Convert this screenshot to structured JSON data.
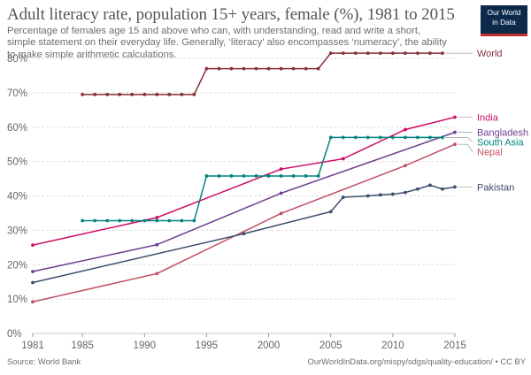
{
  "header": {
    "title": "Adult literacy rate, population 15+ years, female (%), 1981 to 2015",
    "subtitle": "Percentage of females age 15 and above who can, with understanding, read and write a short, simple statement on their everyday life. Generally, ‘literacy’ also encompasses ‘numeracy’, the ability to make simple arithmetic calculations."
  },
  "logo": {
    "line1": "Our World",
    "line2": "in Data"
  },
  "footer": {
    "source": "Source: World Bank",
    "url": "OurWorldInData.org/mispy/sdgs/quality-education/ • CC BY"
  },
  "chart_data": {
    "type": "line",
    "title": "Adult literacy rate, population 15+ years, female (%), 1981 to 2015",
    "xlabel": "",
    "ylabel": "",
    "xlim": [
      1981,
      2015
    ],
    "ylim": [
      0,
      80
    ],
    "x_ticks": [
      1981,
      1985,
      1990,
      1995,
      2000,
      2005,
      2010,
      2015
    ],
    "y_ticks": [
      0,
      10,
      20,
      30,
      40,
      50,
      60,
      70,
      80
    ],
    "y_tick_labels": [
      "0%",
      "10%",
      "20%",
      "30%",
      "40%",
      "50%",
      "60%",
      "70%",
      "80%"
    ],
    "grid": true,
    "legend": "inline-right",
    "series": [
      {
        "name": "World",
        "color": "#883039",
        "points": [
          [
            1985,
            69.5
          ],
          [
            1986,
            69.5
          ],
          [
            1987,
            69.5
          ],
          [
            1988,
            69.5
          ],
          [
            1989,
            69.5
          ],
          [
            1990,
            69.5
          ],
          [
            1991,
            69.5
          ],
          [
            1992,
            69.5
          ],
          [
            1993,
            69.5
          ],
          [
            1994,
            69.5
          ],
          [
            1995,
            77
          ],
          [
            1996,
            77
          ],
          [
            1997,
            77
          ],
          [
            1998,
            77
          ],
          [
            1999,
            77
          ],
          [
            2000,
            77
          ],
          [
            2001,
            77
          ],
          [
            2002,
            77
          ],
          [
            2003,
            77
          ],
          [
            2004,
            77
          ],
          [
            2005,
            81.5
          ],
          [
            2006,
            81.5
          ],
          [
            2007,
            81.5
          ],
          [
            2008,
            81.5
          ],
          [
            2009,
            81.5
          ],
          [
            2010,
            81.5
          ],
          [
            2011,
            81.5
          ],
          [
            2012,
            81.5
          ],
          [
            2013,
            81.5
          ],
          [
            2014,
            81.5
          ]
        ]
      },
      {
        "name": "India",
        "color": "#cf0a66",
        "points": [
          [
            1981,
            25.7
          ],
          [
            1991,
            33.7
          ],
          [
            2001,
            47.8
          ],
          [
            2006,
            50.8
          ],
          [
            2011,
            59.3
          ],
          [
            2015,
            62.9
          ]
        ]
      },
      {
        "name": "Bangladesh",
        "color": "#6d3e91",
        "points": [
          [
            1981,
            18.0
          ],
          [
            1991,
            25.8
          ],
          [
            2001,
            40.8
          ],
          [
            2015,
            58.5
          ]
        ]
      },
      {
        "name": "South Asia",
        "color": "#00847e",
        "points": [
          [
            1985,
            32.8
          ],
          [
            1986,
            32.8
          ],
          [
            1987,
            32.8
          ],
          [
            1988,
            32.8
          ],
          [
            1989,
            32.8
          ],
          [
            1990,
            32.8
          ],
          [
            1991,
            32.8
          ],
          [
            1992,
            32.8
          ],
          [
            1993,
            32.8
          ],
          [
            1994,
            32.8
          ],
          [
            1995,
            45.8
          ],
          [
            1996,
            45.8
          ],
          [
            1997,
            45.8
          ],
          [
            1998,
            45.8
          ],
          [
            1999,
            45.8
          ],
          [
            2000,
            45.8
          ],
          [
            2001,
            45.8
          ],
          [
            2002,
            45.8
          ],
          [
            2003,
            45.8
          ],
          [
            2004,
            45.8
          ],
          [
            2005,
            57.0
          ],
          [
            2006,
            57.0
          ],
          [
            2007,
            57.0
          ],
          [
            2008,
            57.0
          ],
          [
            2009,
            57.0
          ],
          [
            2010,
            57.0
          ],
          [
            2011,
            57.0
          ],
          [
            2012,
            57.0
          ],
          [
            2013,
            57.0
          ],
          [
            2014,
            57.0
          ]
        ]
      },
      {
        "name": "Nepal",
        "color": "#c15065",
        "points": [
          [
            1981,
            9.2
          ],
          [
            1991,
            17.4
          ],
          [
            2001,
            34.9
          ],
          [
            2011,
            48.8
          ],
          [
            2015,
            55.0
          ]
        ]
      },
      {
        "name": "Pakistan",
        "color": "#3b4c6b",
        "points": [
          [
            1981,
            14.8
          ],
          [
            1998,
            29.0
          ],
          [
            2005,
            35.4
          ],
          [
            2006,
            39.6
          ],
          [
            2008,
            40.0
          ],
          [
            2009,
            40.3
          ],
          [
            2010,
            40.5
          ],
          [
            2011,
            41.0
          ],
          [
            2012,
            42.0
          ],
          [
            2013,
            43.1
          ],
          [
            2014,
            42.0
          ],
          [
            2015,
            42.6
          ]
        ]
      }
    ]
  }
}
